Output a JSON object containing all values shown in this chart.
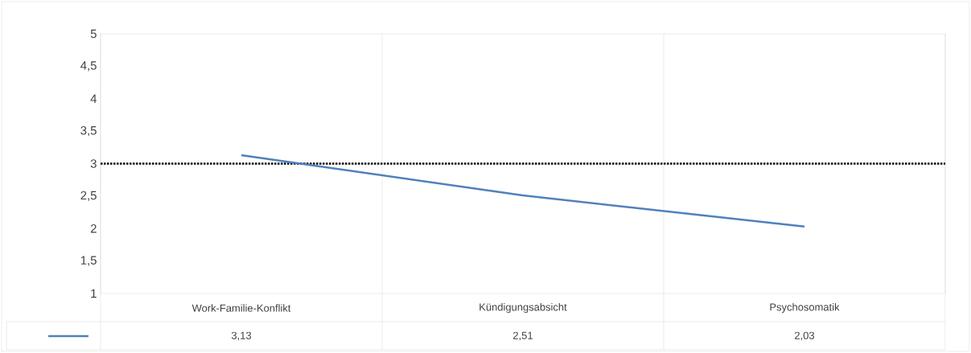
{
  "chart_data": {
    "type": "line",
    "categories": [
      "Work-Familie-Konflikt",
      "Kündigungsabsicht",
      "Psychosomatik"
    ],
    "series": [
      {
        "color": "#4f81bd",
        "values": [
          3.13,
          2.51,
          2.03
        ],
        "value_labels": [
          "3,13",
          "2,51",
          "2,03"
        ]
      }
    ],
    "ylim": [
      1,
      5
    ],
    "yticks": [
      1,
      {
        "value": 1.5,
        "label": "1,5"
      },
      2,
      {
        "value": 2.5,
        "label": "2,5"
      },
      3,
      {
        "value": 3.5,
        "label": "3,5"
      },
      4,
      {
        "value": 4.5,
        "label": "4,5"
      },
      5
    ],
    "ref_lines": [
      {
        "axis": "y",
        "value": 3,
        "color": "#000000",
        "line_style": "dotted"
      }
    ]
  }
}
